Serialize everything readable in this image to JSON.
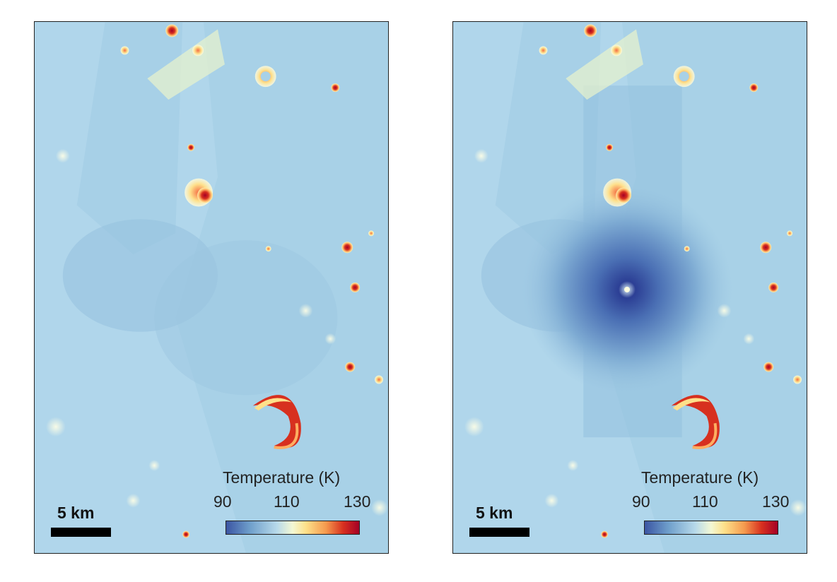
{
  "panels": [
    {
      "colorbar": {
        "title": "Temperature (K)",
        "ticks": [
          "90",
          "110",
          "130"
        ],
        "colors": [
          "#3b55a3",
          "#b7d9ea",
          "#f3f8d4",
          "#fde08a",
          "#d7301f",
          "#a50026"
        ]
      },
      "scalebar": {
        "label": "5 km"
      }
    },
    {
      "colorbar": {
        "title": "Temperature (K)",
        "ticks": [
          "90",
          "110",
          "130"
        ],
        "colors": [
          "#3b55a3",
          "#b7d9ea",
          "#f3f8d4",
          "#fde08a",
          "#d7301f",
          "#a50026"
        ]
      },
      "scalebar": {
        "label": "5 km"
      }
    }
  ]
}
